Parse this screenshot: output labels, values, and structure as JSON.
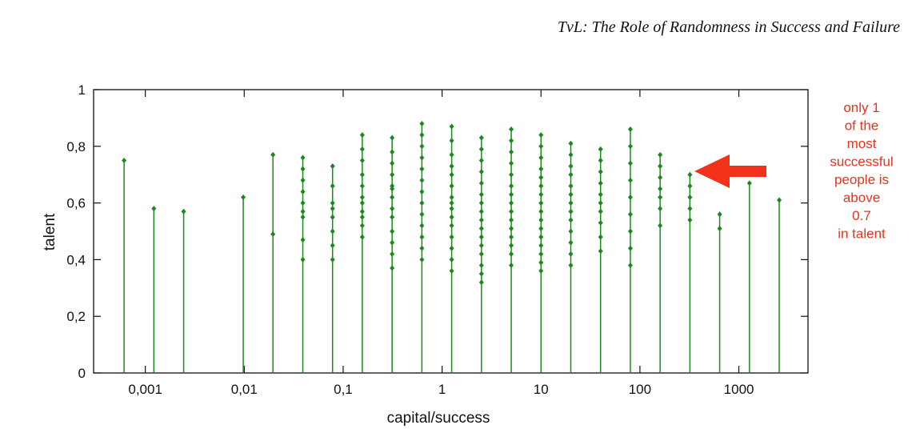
{
  "chart_data": {
    "type": "scatter",
    "title": "TvL: The Role of Randomness in Success and Failure",
    "xlabel": "capital/success",
    "ylabel": "talent",
    "xscale": "log",
    "color": "#1a8a1a",
    "xlim": [
      0.0003,
      5000
    ],
    "ylim": [
      0,
      1
    ],
    "xticks": [
      {
        "value": 0.001,
        "label": "0,001"
      },
      {
        "value": 0.01,
        "label": "0,01"
      },
      {
        "value": 0.1,
        "label": "0,1"
      },
      1,
      10,
      100,
      1000
    ],
    "yticks": [
      0,
      {
        "value": 0.2,
        "label": "0,2"
      },
      {
        "value": 0.4,
        "label": "0,4"
      },
      {
        "value": 0.6,
        "label": "0,6"
      },
      {
        "value": 0.8,
        "label": "0,8"
      },
      1
    ],
    "x": [
      0.00061,
      0.00122,
      0.00244,
      0.00977,
      0.0195,
      0.0391,
      0.0781,
      0.156,
      0.3125,
      0.625,
      1.25,
      2.5,
      5,
      10,
      20,
      40,
      80,
      160,
      320,
      640,
      1280,
      2560
    ],
    "y": [
      [
        0.75
      ],
      [
        0.58
      ],
      [
        0.57
      ],
      [
        0.62
      ],
      [
        0.77,
        0.49
      ],
      [
        0.76,
        0.72,
        0.68,
        0.64,
        0.6,
        0.57,
        0.55,
        0.47,
        0.4
      ],
      [
        0.73,
        0.66,
        0.6,
        0.58,
        0.55,
        0.5,
        0.45,
        0.4
      ],
      [
        0.84,
        0.79,
        0.75,
        0.7,
        0.66,
        0.62,
        0.6,
        0.57,
        0.55,
        0.52,
        0.48
      ],
      [
        0.83,
        0.78,
        0.74,
        0.7,
        0.66,
        0.65,
        0.62,
        0.58,
        0.55,
        0.5,
        0.46,
        0.42,
        0.37
      ],
      [
        0.88,
        0.84,
        0.8,
        0.76,
        0.72,
        0.68,
        0.64,
        0.6,
        0.56,
        0.52,
        0.48,
        0.44,
        0.4
      ],
      [
        0.87,
        0.82,
        0.77,
        0.73,
        0.7,
        0.66,
        0.62,
        0.6,
        0.58,
        0.55,
        0.52,
        0.48,
        0.44,
        0.4,
        0.36
      ],
      [
        0.83,
        0.79,
        0.75,
        0.71,
        0.67,
        0.63,
        0.6,
        0.57,
        0.54,
        0.51,
        0.48,
        0.45,
        0.42,
        0.38,
        0.35,
        0.32
      ],
      [
        0.86,
        0.82,
        0.78,
        0.74,
        0.7,
        0.66,
        0.63,
        0.6,
        0.57,
        0.54,
        0.51,
        0.48,
        0.45,
        0.42,
        0.38
      ],
      [
        0.84,
        0.8,
        0.76,
        0.72,
        0.69,
        0.66,
        0.63,
        0.6,
        0.57,
        0.54,
        0.51,
        0.48,
        0.45,
        0.42,
        0.39,
        0.36
      ],
      [
        0.81,
        0.77,
        0.73,
        0.7,
        0.66,
        0.63,
        0.6,
        0.57,
        0.54,
        0.5,
        0.46,
        0.42,
        0.38
      ],
      [
        0.79,
        0.75,
        0.71,
        0.67,
        0.63,
        0.6,
        0.57,
        0.53,
        0.48,
        0.43
      ],
      [
        0.86,
        0.8,
        0.74,
        0.68,
        0.62,
        0.56,
        0.5,
        0.44,
        0.38
      ],
      [
        0.77,
        0.73,
        0.69,
        0.65,
        0.62,
        0.58,
        0.52
      ],
      [
        0.7,
        0.66,
        0.62,
        0.58,
        0.54
      ],
      [
        0.56,
        0.51
      ],
      [
        0.67
      ],
      [
        0.61
      ]
    ],
    "annotation": [
      "only 1",
      "of the",
      "most",
      "successful",
      "people is",
      "above",
      "0.7",
      "in talent"
    ],
    "annotation_color": "#e8321c"
  }
}
